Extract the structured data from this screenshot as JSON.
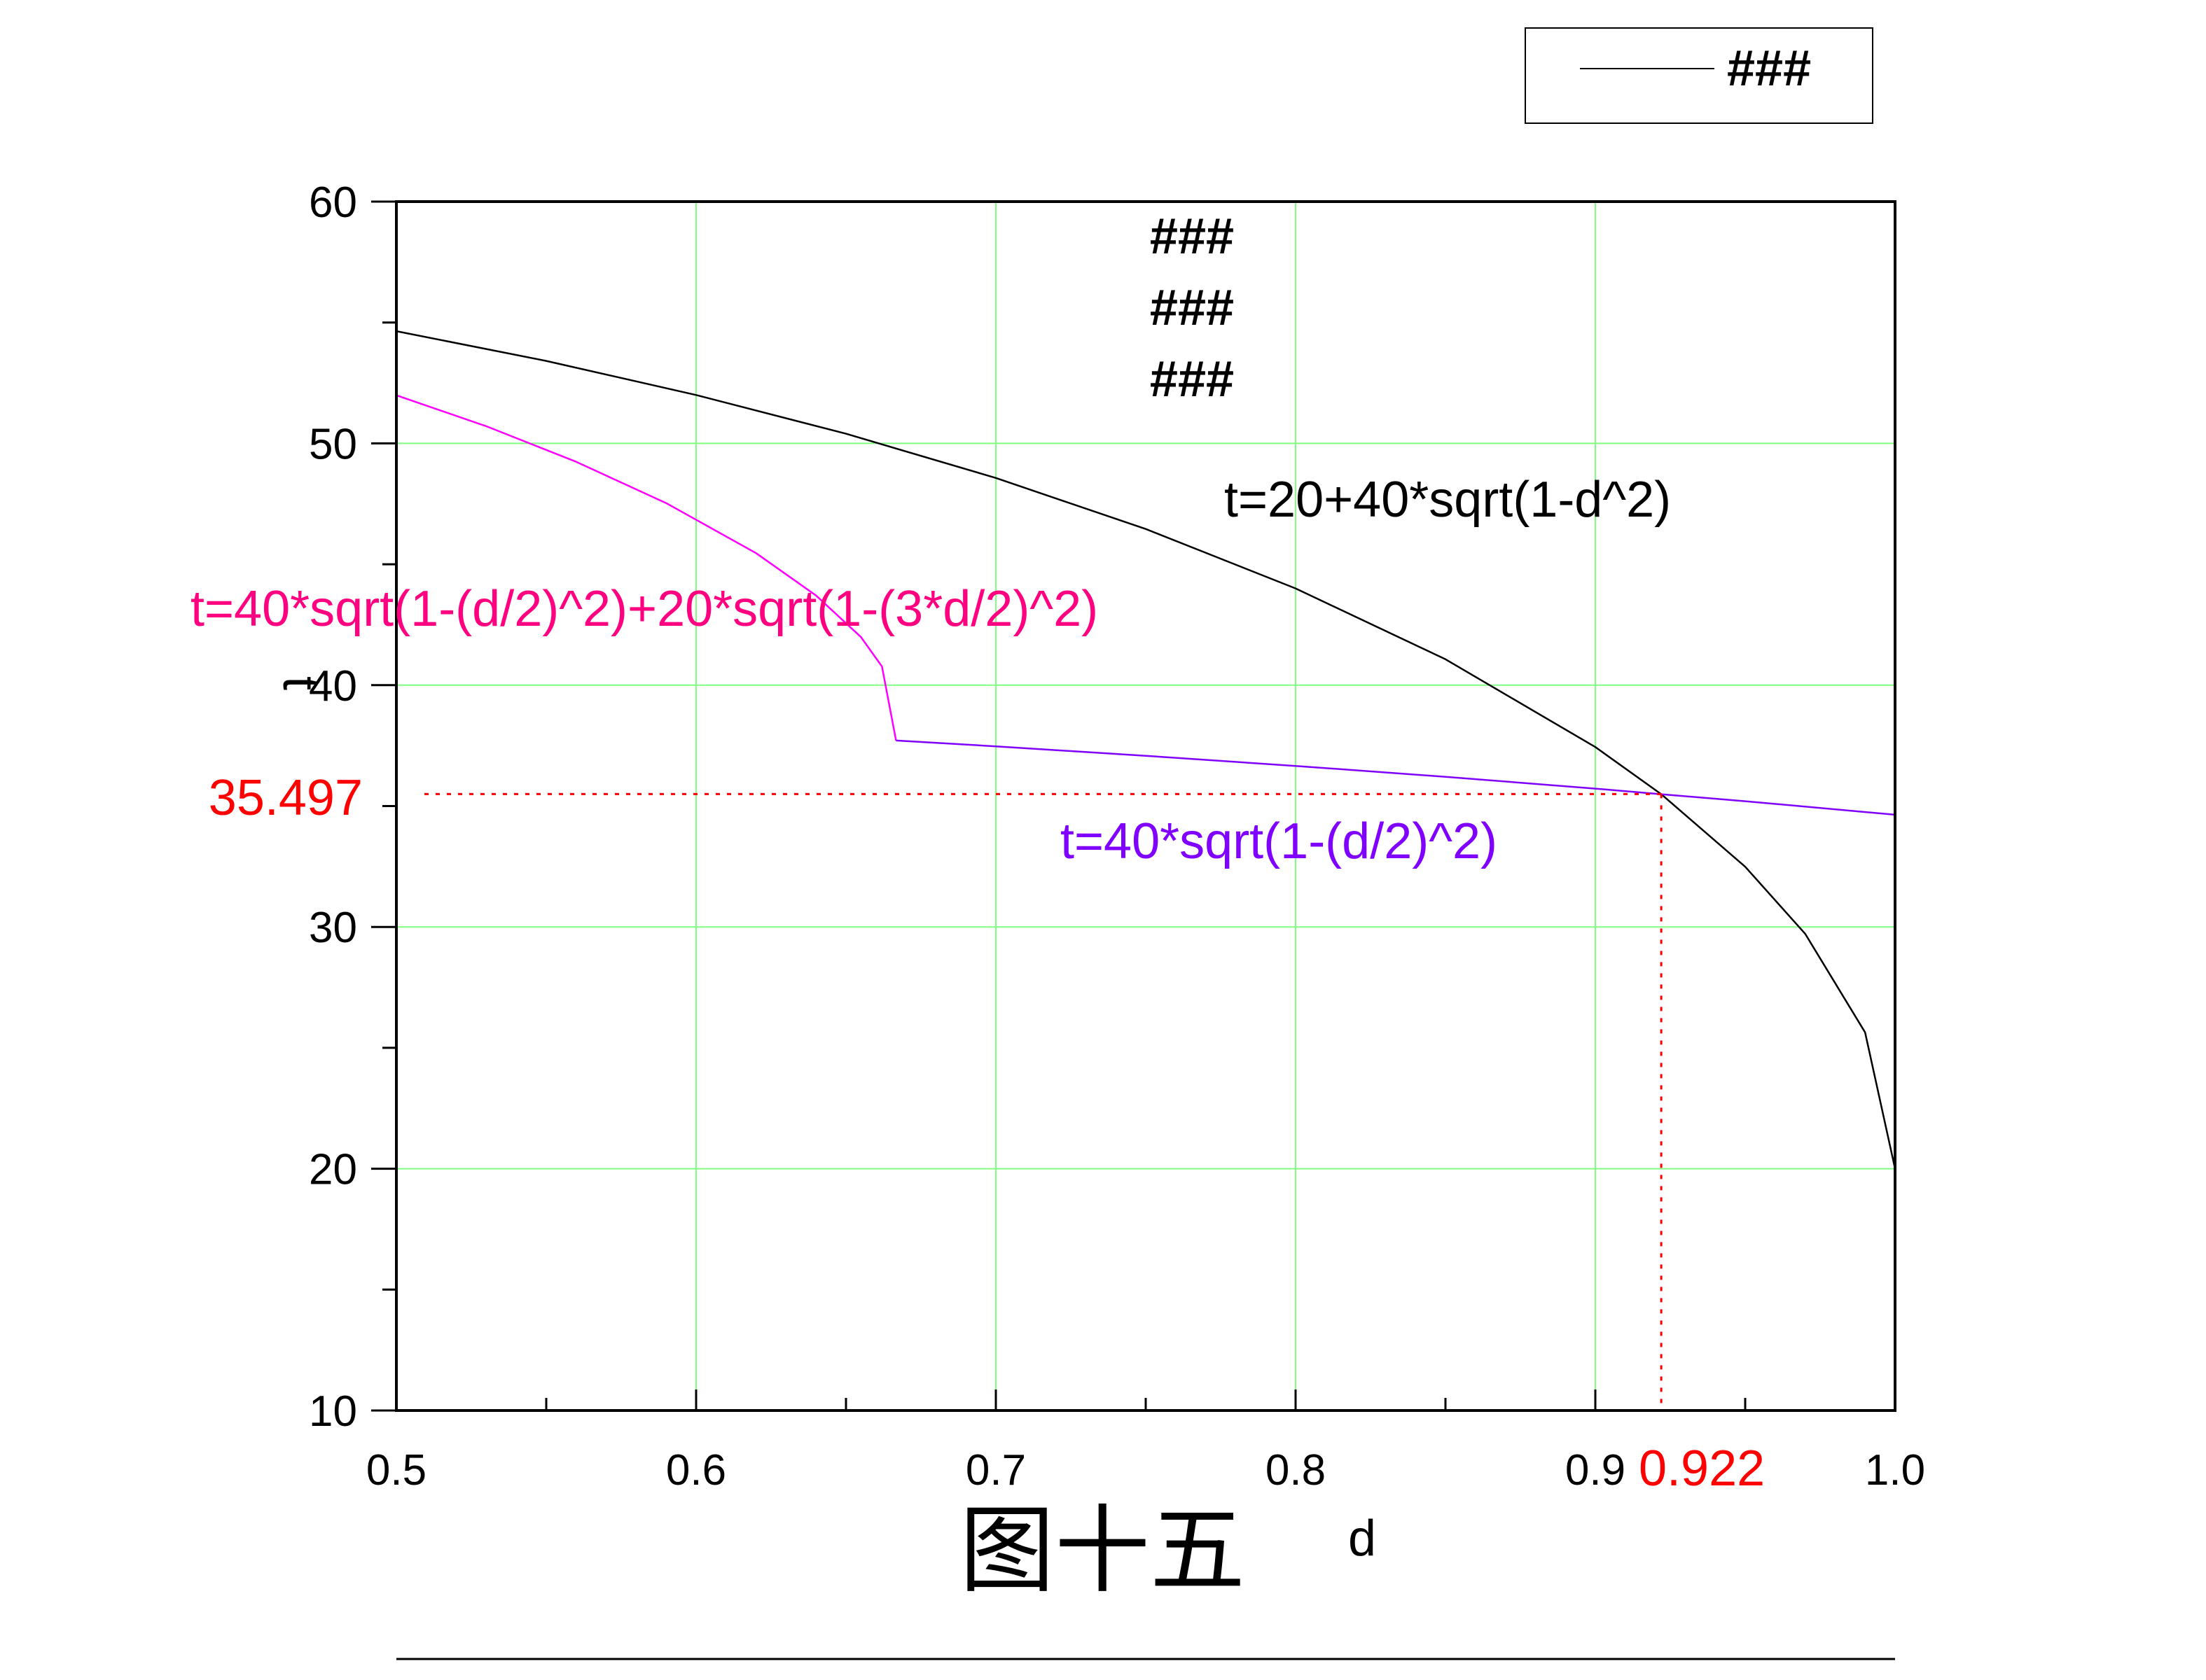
{
  "chart_data": {
    "type": "line",
    "xlabel": "d",
    "ylabel": "t",
    "xlim": [
      0.5,
      1.0
    ],
    "ylim": [
      10,
      60
    ],
    "xticks": [
      "0.5",
      "0.6",
      "0.7",
      "0.8",
      "0.9",
      "1.0"
    ],
    "yticks": [
      "10",
      "20",
      "30",
      "40",
      "50",
      "60"
    ],
    "grid": true,
    "grid_color": "#80ff80",
    "legend": {
      "position": "top-right",
      "entries": [
        "###"
      ]
    },
    "caption": "图十五",
    "placeholders": [
      "###",
      "###",
      "###"
    ],
    "series": [
      {
        "label": "t=20+40*sqrt(1-d^2)",
        "color": "#000000",
        "x": [
          0.5,
          0.55,
          0.6,
          0.65,
          0.7,
          0.75,
          0.8,
          0.85,
          0.9,
          0.922,
          0.95,
          0.97,
          0.99,
          1.0
        ],
        "y": [
          54.64,
          53.41,
          52.0,
          50.4,
          48.57,
          46.46,
          44.0,
          41.07,
          37.44,
          35.49,
          32.49,
          29.72,
          25.64,
          20.0
        ]
      },
      {
        "label": "t=40*sqrt(1-(d/2)^2)+20*sqrt(1-(3*d/2)^2)",
        "color": "#ff00ff",
        "label_color": "#ff0080",
        "x": [
          0.5,
          0.53,
          0.56,
          0.59,
          0.62,
          0.64,
          0.655,
          0.662,
          0.6667
        ],
        "y": [
          51.99,
          50.71,
          49.24,
          47.53,
          45.46,
          43.71,
          41.99,
          40.77,
          37.71
        ]
      },
      {
        "label": "t=40*sqrt(1-(d/2)^2)",
        "color": "#8000ff",
        "x": [
          0.6667,
          0.7,
          0.75,
          0.8,
          0.85,
          0.9,
          0.922,
          0.95,
          1.0
        ],
        "y": [
          37.71,
          37.47,
          37.08,
          36.66,
          36.21,
          35.72,
          35.49,
          35.2,
          34.64
        ]
      }
    ],
    "annotations": {
      "color": "#ff0000",
      "intersection": {
        "x": 0.922,
        "y": 35.497,
        "x_label": "0.922",
        "y_label": "35.497"
      }
    }
  }
}
